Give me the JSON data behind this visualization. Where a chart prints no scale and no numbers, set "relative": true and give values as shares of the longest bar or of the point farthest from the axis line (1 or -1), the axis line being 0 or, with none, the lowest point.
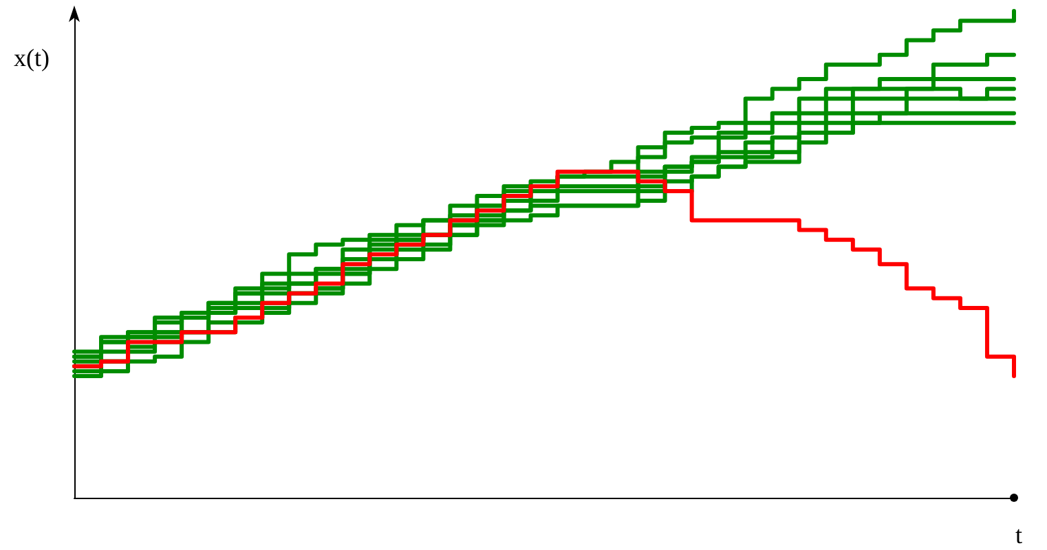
{
  "chart_data": {
    "type": "step",
    "xlabel": "t",
    "ylabel": "x(t)",
    "relative": true,
    "marker": "none",
    "line_style": "solid",
    "categories": [
      null,
      null,
      null,
      null,
      null,
      null,
      null,
      null,
      null,
      null,
      null,
      null,
      null,
      null,
      null,
      null,
      null,
      null,
      null,
      null,
      null,
      null,
      null,
      null,
      null,
      null,
      null,
      null,
      null,
      null,
      null,
      null,
      null,
      null,
      null,
      null
    ],
    "series": [
      {
        "color": "#008c00",
        "values": [
          0.29,
          0.32,
          0.34,
          0.36,
          0.38,
          0.4,
          0.43,
          0.46,
          0.5,
          0.52,
          0.53,
          0.54,
          0.56,
          0.57,
          0.6,
          0.62,
          0.64,
          0.65,
          0.66,
          0.67,
          0.69,
          0.72,
          0.75,
          0.76,
          0.77,
          0.82,
          0.84,
          0.86,
          0.89,
          0.89,
          0.91,
          0.94,
          0.96,
          0.98,
          0.98,
          1
        ]
      },
      {
        "color": "#008c00",
        "values": [
          0.28,
          0.3,
          0.33,
          0.34,
          0.37,
          0.39,
          0.4,
          0.42,
          0.44,
          0.47,
          0.51,
          0.53,
          0.54,
          0.57,
          0.58,
          0.6,
          0.63,
          0.64,
          0.66,
          0.66,
          0.66,
          0.7,
          0.73,
          0.74,
          0.75,
          0.77,
          0.79,
          0.82,
          0.84,
          0.84,
          0.86,
          0.86,
          0.89,
          0.89,
          0.91,
          0.91
        ]
      },
      {
        "color": "#008c00",
        "values": [
          0.27,
          0.28,
          0.31,
          0.32,
          0.34,
          0.38,
          0.42,
          0.43,
          0.44,
          0.46,
          0.47,
          0.52,
          0.53,
          0.54,
          0.57,
          0.6,
          0.61,
          0.63,
          0.64,
          0.64,
          0.64,
          0.67,
          0.68,
          0.7,
          0.74,
          0.75,
          0.77,
          0.79,
          0.82,
          0.84,
          0.84,
          0.84,
          0.86,
          0.86,
          0.86,
          0.86
        ]
      },
      {
        "color": "#008c00",
        "values": [
          0.26,
          0.28,
          0.3,
          0.33,
          0.34,
          0.36,
          0.37,
          0.39,
          0.42,
          0.43,
          0.46,
          0.5,
          0.52,
          0.54,
          0.56,
          0.57,
          0.59,
          0.61,
          0.63,
          0.63,
          0.63,
          0.64,
          0.67,
          0.69,
          0.71,
          0.73,
          0.74,
          0.77,
          0.79,
          0.82,
          0.82,
          0.84,
          0.84,
          0.82,
          0.84,
          0.84
        ]
      },
      {
        "color": "#008c00",
        "values": [
          0.3,
          0.33,
          0.34,
          0.37,
          0.38,
          0.4,
          0.42,
          0.44,
          0.46,
          0.47,
          0.49,
          0.51,
          0.53,
          0.54,
          0.56,
          0.58,
          0.61,
          0.63,
          0.63,
          0.63,
          0.63,
          0.66,
          0.68,
          0.69,
          0.7,
          0.71,
          0.74,
          0.75,
          0.77,
          0.79,
          0.79,
          0.82,
          0.82,
          0.82,
          0.82,
          0.82
        ]
      },
      {
        "color": "#008c00",
        "values": [
          0.25,
          0.26,
          0.28,
          0.29,
          0.32,
          0.34,
          0.36,
          0.38,
          0.4,
          0.42,
          0.44,
          0.47,
          0.49,
          0.51,
          0.54,
          0.57,
          0.59,
          0.6,
          0.6,
          0.6,
          0.6,
          0.63,
          0.65,
          0.66,
          0.68,
          0.7,
          0.71,
          0.73,
          0.75,
          0.77,
          0.79,
          0.79,
          0.79,
          0.79,
          0.79,
          0.79
        ]
      },
      {
        "color": "#008c00",
        "values": [
          0.29,
          0.32,
          0.33,
          0.34,
          0.37,
          0.38,
          0.39,
          0.4,
          0.42,
          0.43,
          0.46,
          0.49,
          0.51,
          0.52,
          0.54,
          0.56,
          0.57,
          0.58,
          0.6,
          0.6,
          0.6,
          0.61,
          0.63,
          0.66,
          0.68,
          0.69,
          0.69,
          0.75,
          0.75,
          0.77,
          0.77,
          0.77,
          0.77,
          0.77,
          0.77,
          0.77
        ]
      },
      {
        "color": "#ff0000",
        "values": [
          0.27,
          0.28,
          0.32,
          0.32,
          0.34,
          0.34,
          0.37,
          0.4,
          0.42,
          0.44,
          0.48,
          0.5,
          0.52,
          0.54,
          0.57,
          0.59,
          0.62,
          0.64,
          0.67,
          0.67,
          0.67,
          0.65,
          0.63,
          0.57,
          0.57,
          0.57,
          0.57,
          0.55,
          0.53,
          0.51,
          0.48,
          0.43,
          0.41,
          0.39,
          0.29,
          0.25
        ]
      }
    ]
  }
}
